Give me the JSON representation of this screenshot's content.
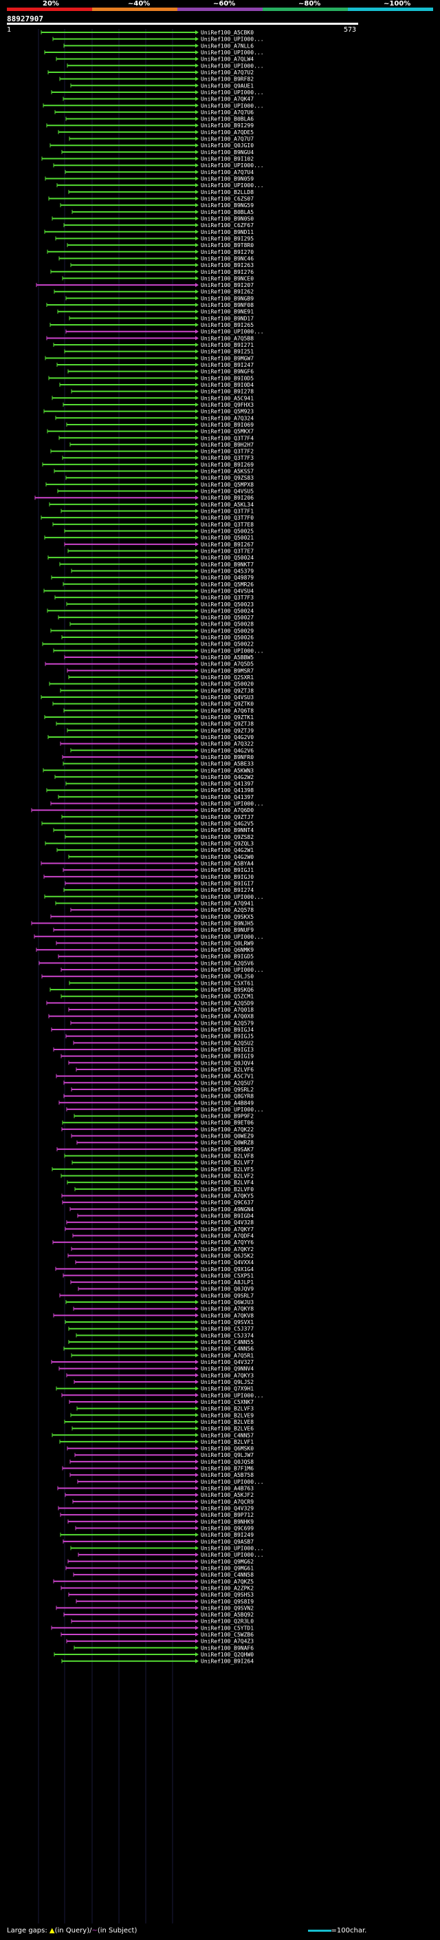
{
  "legend": {
    "labels": [
      "20%",
      "~40%",
      "~60%",
      "~80%",
      "~100%"
    ],
    "colors": [
      "#e31a1c",
      "#e67e22",
      "#8e44ad",
      "#27ae60",
      "#17becf"
    ]
  },
  "query_id": "88927907",
  "scale": {
    "start": "1",
    "end": "573"
  },
  "footer": {
    "large_gaps_label": "Large gaps:",
    "query_gap_text": "(in Query)/",
    "subject_gap_text": "(in Subject)",
    "scale_text": "=100char."
  },
  "hits": [
    {
      "label": "UniRef100_A5CBK0",
      "color": "#55dd33"
    },
    {
      "label": "UniRef100_UPI000...",
      "color": "#55dd33"
    },
    {
      "label": "UniRef100_A7NLL6",
      "color": "#55dd33"
    },
    {
      "label": "UniRef100_UPI000...",
      "color": "#55dd33"
    },
    {
      "label": "UniRef100_A7QLW4",
      "color": "#55dd33"
    },
    {
      "label": "UniRef100_UPI000...",
      "color": "#55dd33"
    },
    {
      "label": "UniRef100_A7Q7U2",
      "color": "#55dd33"
    },
    {
      "label": "UniRef100_B9RF82",
      "color": "#55dd33"
    },
    {
      "label": "UniRef100_Q9AUE1",
      "color": "#55dd33"
    },
    {
      "label": "UniRef100_UPI000...",
      "color": "#55dd33"
    },
    {
      "label": "UniRef100_A7QK47",
      "color": "#55dd33"
    },
    {
      "label": "UniRef100_UPI000...",
      "color": "#55dd33"
    },
    {
      "label": "UniRef100_A7Q7U6",
      "color": "#55dd33"
    },
    {
      "label": "UniRef100_B0BLA6",
      "color": "#55dd33"
    },
    {
      "label": "UniRef100_B9I299",
      "color": "#55dd33"
    },
    {
      "label": "UniRef100_A7QDE5",
      "color": "#55dd33"
    },
    {
      "label": "UniRef100_A7Q7U7",
      "color": "#55dd33"
    },
    {
      "label": "UniRef100_Q0JGI0",
      "color": "#55dd33"
    },
    {
      "label": "UniRef100_B9NGU4",
      "color": "#55dd33"
    },
    {
      "label": "UniRef100_B9I102",
      "color": "#55dd33"
    },
    {
      "label": "UniRef100_UPI000...",
      "color": "#55dd33"
    },
    {
      "label": "UniRef100_A7Q7U4",
      "color": "#55dd33"
    },
    {
      "label": "UniRef100_B9N059",
      "color": "#55dd33"
    },
    {
      "label": "UniRef100_UPI000...",
      "color": "#55dd33"
    },
    {
      "label": "UniRef100_B2LLD8",
      "color": "#55dd33"
    },
    {
      "label": "UniRef100_C6ZS07",
      "color": "#55dd33"
    },
    {
      "label": "UniRef100_B9NG59",
      "color": "#55dd33"
    },
    {
      "label": "UniRef100_B0BLA5",
      "color": "#55dd33"
    },
    {
      "label": "UniRef100_B9N0S0",
      "color": "#55dd33"
    },
    {
      "label": "UniRef100_C6ZF67",
      "color": "#55dd33"
    },
    {
      "label": "UniRef100_B9ND11",
      "color": "#55dd33"
    },
    {
      "label": "UniRef100_B9I295",
      "color": "#55dd33"
    },
    {
      "label": "UniRef100_B9T8R0",
      "color": "#55dd33"
    },
    {
      "label": "UniRef100_B9I270",
      "color": "#55dd33"
    },
    {
      "label": "UniRef100_B9NC46",
      "color": "#55dd33"
    },
    {
      "label": "UniRef100_B9I263",
      "color": "#55dd33"
    },
    {
      "label": "UniRef100_B9I276",
      "color": "#55dd33"
    },
    {
      "label": "UniRef100_B9NCE0",
      "color": "#55dd33"
    },
    {
      "label": "UniRef100_B9I207",
      "color": "#cc44cc"
    },
    {
      "label": "UniRef100_B9I262",
      "color": "#55dd33"
    },
    {
      "label": "UniRef100_B9NGB9",
      "color": "#55dd33"
    },
    {
      "label": "UniRef100_B9NF08",
      "color": "#55dd33"
    },
    {
      "label": "UniRef100_B9NE91",
      "color": "#55dd33"
    },
    {
      "label": "UniRef100_B9ND17",
      "color": "#55dd33"
    },
    {
      "label": "UniRef100_B9I265",
      "color": "#55dd33"
    },
    {
      "label": "UniRef100_UPI000...",
      "color": "#cc44cc"
    },
    {
      "label": "UniRef100_A7Q5B8",
      "color": "#cc44cc"
    },
    {
      "label": "UniRef100_B9I271",
      "color": "#55dd33"
    },
    {
      "label": "UniRef100_B9I251",
      "color": "#55dd33"
    },
    {
      "label": "UniRef100_B9MGW7",
      "color": "#55dd33"
    },
    {
      "label": "UniRef100_B9I247",
      "color": "#55dd33"
    },
    {
      "label": "UniRef100_B9NGF6",
      "color": "#55dd33"
    },
    {
      "label": "UniRef100_B9I0D5",
      "color": "#55dd33"
    },
    {
      "label": "UniRef100_B9I0D4",
      "color": "#55dd33"
    },
    {
      "label": "UniRef100_B9I278",
      "color": "#55dd33"
    },
    {
      "label": "UniRef100_A5C941",
      "color": "#55dd33"
    },
    {
      "label": "UniRef100_Q9FHX3",
      "color": "#55dd33"
    },
    {
      "label": "UniRef100_Q5M923",
      "color": "#55dd33"
    },
    {
      "label": "UniRef100_A7Q324",
      "color": "#55dd33"
    },
    {
      "label": "UniRef100_B9I069",
      "color": "#55dd33"
    },
    {
      "label": "UniRef100_Q5MKX7",
      "color": "#55dd33"
    },
    {
      "label": "UniRef100_Q3T7F4",
      "color": "#55dd33"
    },
    {
      "label": "UniRef100_B9H2H7",
      "color": "#55dd33"
    },
    {
      "label": "UniRef100_Q3T7F2",
      "color": "#55dd33"
    },
    {
      "label": "UniRef100_Q3T7F3",
      "color": "#55dd33"
    },
    {
      "label": "UniRef100_B9I269",
      "color": "#55dd33"
    },
    {
      "label": "UniRef100_A5KSS7",
      "color": "#55dd33"
    },
    {
      "label": "UniRef100_Q9ZS83",
      "color": "#55dd33"
    },
    {
      "label": "UniRef100_Q5MPX8",
      "color": "#55dd33"
    },
    {
      "label": "UniRef100_Q4VSU5",
      "color": "#55dd33"
    },
    {
      "label": "UniRef100_B9I206",
      "color": "#cc44cc"
    },
    {
      "label": "UniRef100_A5KL34",
      "color": "#55dd33"
    },
    {
      "label": "UniRef100_Q3T7F1",
      "color": "#55dd33"
    },
    {
      "label": "UniRef100_Q3T7F0",
      "color": "#55dd33"
    },
    {
      "label": "UniRef100_Q3T7E8",
      "color": "#55dd33"
    },
    {
      "label": "UniRef100_Q50025",
      "color": "#55dd33"
    },
    {
      "label": "UniRef100_Q50021",
      "color": "#55dd33"
    },
    {
      "label": "UniRef100_B9I267",
      "color": "#cc44cc"
    },
    {
      "label": "UniRef100_Q3T7E7",
      "color": "#55dd33"
    },
    {
      "label": "UniRef100_Q50024",
      "color": "#55dd33"
    },
    {
      "label": "UniRef100_B9NKT7",
      "color": "#55dd33"
    },
    {
      "label": "UniRef100_Q45379",
      "color": "#55dd33"
    },
    {
      "label": "UniRef100_Q49879",
      "color": "#55dd33"
    },
    {
      "label": "UniRef100_Q5MR26",
      "color": "#55dd33"
    },
    {
      "label": "UniRef100_Q4VSU4",
      "color": "#55dd33"
    },
    {
      "label": "UniRef100_Q3T7F3",
      "color": "#55dd33"
    },
    {
      "label": "UniRef100_Q50023",
      "color": "#55dd33"
    },
    {
      "label": "UniRef100_Q50024",
      "color": "#55dd33"
    },
    {
      "label": "UniRef100_Q50027",
      "color": "#55dd33"
    },
    {
      "label": "UniRef100_Q50028",
      "color": "#55dd33"
    },
    {
      "label": "UniRef100_Q50029",
      "color": "#55dd33"
    },
    {
      "label": "UniRef100_Q50026",
      "color": "#55dd33"
    },
    {
      "label": "UniRef100_Q50022",
      "color": "#55dd33"
    },
    {
      "label": "UniRef100_UPI000...",
      "color": "#55dd33"
    },
    {
      "label": "UniRef100_A5BBW5",
      "color": "#cc44cc"
    },
    {
      "label": "UniRef100_A7Q5D5",
      "color": "#cc44cc"
    },
    {
      "label": "UniRef100_B9MSR7",
      "color": "#cc44cc"
    },
    {
      "label": "UniRef100_Q2SXR1",
      "color": "#55dd33"
    },
    {
      "label": "UniRef100_Q50020",
      "color": "#55dd33"
    },
    {
      "label": "UniRef100_Q9ZTJ8",
      "color": "#55dd33"
    },
    {
      "label": "UniRef100_Q4VSU3",
      "color": "#55dd33"
    },
    {
      "label": "UniRef100_Q9ZTK0",
      "color": "#55dd33"
    },
    {
      "label": "UniRef100_A7Q6T8",
      "color": "#55dd33"
    },
    {
      "label": "UniRef100_Q9ZTK1",
      "color": "#55dd33"
    },
    {
      "label": "UniRef100_Q9ZTJ8",
      "color": "#55dd33"
    },
    {
      "label": "UniRef100_Q9ZTJ9",
      "color": "#55dd33"
    },
    {
      "label": "UniRef100_Q4G2V0",
      "color": "#55dd33"
    },
    {
      "label": "UniRef100_A7Q322",
      "color": "#cc44cc"
    },
    {
      "label": "UniRef100_Q4G2V6",
      "color": "#55dd33"
    },
    {
      "label": "UniRef100_B9NFR0",
      "color": "#cc44cc"
    },
    {
      "label": "UniRef100_A5BE33",
      "color": "#55dd33"
    },
    {
      "label": "UniRef100_A5KWN3",
      "color": "#55dd33"
    },
    {
      "label": "UniRef100_Q4G2W2",
      "color": "#55dd33"
    },
    {
      "label": "UniRef100_Q41397",
      "color": "#55dd33"
    },
    {
      "label": "UniRef100_Q41398",
      "color": "#55dd33"
    },
    {
      "label": "UniRef100_Q41397",
      "color": "#55dd33"
    },
    {
      "label": "UniRef100_UPI000...",
      "color": "#cc44cc"
    },
    {
      "label": "UniRef100_A7Q6D0",
      "color": "#cc44cc"
    },
    {
      "label": "UniRef100_Q9ZTJ7",
      "color": "#55dd33"
    },
    {
      "label": "UniRef100_Q4G2V5",
      "color": "#55dd33"
    },
    {
      "label": "UniRef100_B9NNT4",
      "color": "#55dd33"
    },
    {
      "label": "UniRef100_Q9ZS82",
      "color": "#55dd33"
    },
    {
      "label": "UniRef100_Q9ZQL3",
      "color": "#55dd33"
    },
    {
      "label": "UniRef100_Q4G2W1",
      "color": "#55dd33"
    },
    {
      "label": "UniRef100_Q4G2W0",
      "color": "#55dd33"
    },
    {
      "label": "UniRef100_A5BYA4",
      "color": "#cc44cc"
    },
    {
      "label": "UniRef100_B9IGJ1",
      "color": "#cc44cc"
    },
    {
      "label": "UniRef100_B9IGJ0",
      "color": "#cc44cc"
    },
    {
      "label": "UniRef100_B9IGI7",
      "color": "#cc44cc"
    },
    {
      "label": "UniRef100_B9I274",
      "color": "#55dd33"
    },
    {
      "label": "UniRef100_UPI000...",
      "color": "#55dd33"
    },
    {
      "label": "UniRef100_A7Q941",
      "color": "#55dd33"
    },
    {
      "label": "UniRef100_A2Q578",
      "color": "#cc44cc"
    },
    {
      "label": "UniRef100_Q9SKX5",
      "color": "#cc44cc"
    },
    {
      "label": "UniRef100_B9NJH5",
      "color": "#cc44cc"
    },
    {
      "label": "UniRef100_B9NUF9",
      "color": "#cc44cc"
    },
    {
      "label": "UniRef100_UPI000...",
      "color": "#cc44cc"
    },
    {
      "label": "UniRef100_Q0LRW9",
      "color": "#cc44cc"
    },
    {
      "label": "UniRef100_Q6NMK9",
      "color": "#cc44cc"
    },
    {
      "label": "UniRef100_B9IGD5",
      "color": "#cc44cc"
    },
    {
      "label": "UniRef100_A2Q5V6",
      "color": "#cc44cc"
    },
    {
      "label": "UniRef100_UPI000...",
      "color": "#cc44cc"
    },
    {
      "label": "UniRef100_Q9LJS0",
      "color": "#cc44cc"
    },
    {
      "label": "UniRef100_C5XT61",
      "color": "#55dd33"
    },
    {
      "label": "UniRef100_B9SKQ6",
      "color": "#55dd33"
    },
    {
      "label": "UniRef100_Q5ZCM1",
      "color": "#55dd33"
    },
    {
      "label": "UniRef100_A2Q5D9",
      "color": "#cc44cc"
    },
    {
      "label": "UniRef100_A7Q018",
      "color": "#cc44cc"
    },
    {
      "label": "UniRef100_A7Q0X8",
      "color": "#cc44cc"
    },
    {
      "label": "UniRef100_A2Q579",
      "color": "#cc44cc"
    },
    {
      "label": "UniRef100_B9IGJ4",
      "color": "#cc44cc"
    },
    {
      "label": "UniRef100_B9IGJ5",
      "color": "#cc44cc"
    },
    {
      "label": "UniRef100_A2Q5U2",
      "color": "#cc44cc"
    },
    {
      "label": "UniRef100_B9IGI3",
      "color": "#cc44cc"
    },
    {
      "label": "UniRef100_B9IGI9",
      "color": "#cc44cc"
    },
    {
      "label": "UniRef100_Q0JQV4",
      "color": "#cc44cc"
    },
    {
      "label": "UniRef100_B2LVF6",
      "color": "#cc44cc"
    },
    {
      "label": "UniRef100_A5C7V1",
      "color": "#cc44cc"
    },
    {
      "label": "UniRef100_A2Q5U7",
      "color": "#cc44cc"
    },
    {
      "label": "UniRef100_Q9SRL2",
      "color": "#cc44cc"
    },
    {
      "label": "UniRef100_Q8GYR8",
      "color": "#cc44cc"
    },
    {
      "label": "UniRef100_A4B849",
      "color": "#cc44cc"
    },
    {
      "label": "UniRef100_UPI000...",
      "color": "#cc44cc"
    },
    {
      "label": "UniRef100_B9P9F2",
      "color": "#55dd33"
    },
    {
      "label": "UniRef100_B9ET06",
      "color": "#55dd33"
    },
    {
      "label": "UniRef100_A7QK22",
      "color": "#cc44cc"
    },
    {
      "label": "UniRef100_Q0WEZ9",
      "color": "#cc44cc"
    },
    {
      "label": "UniRef100_Q0WRZ8",
      "color": "#cc44cc"
    },
    {
      "label": "UniRef100_B9SAK7",
      "color": "#cc44cc"
    },
    {
      "label": "UniRef100_B2LVF8",
      "color": "#55dd33"
    },
    {
      "label": "UniRef100_B2LVF7",
      "color": "#55dd33"
    },
    {
      "label": "UniRef100_B2LVF5",
      "color": "#55dd33"
    },
    {
      "label": "UniRef100_B2LVF2",
      "color": "#55dd33"
    },
    {
      "label": "UniRef100_B2LVF4",
      "color": "#55dd33"
    },
    {
      "label": "UniRef100_B2LVF0",
      "color": "#55dd33"
    },
    {
      "label": "UniRef100_A7QKY5",
      "color": "#cc44cc"
    },
    {
      "label": "UniRef100_Q9C637",
      "color": "#cc44cc"
    },
    {
      "label": "UniRef100_A9NGN4",
      "color": "#cc44cc"
    },
    {
      "label": "UniRef100_B9IGD4",
      "color": "#cc44cc"
    },
    {
      "label": "UniRef100_Q4V328",
      "color": "#cc44cc"
    },
    {
      "label": "UniRef100_A7QKY7",
      "color": "#cc44cc"
    },
    {
      "label": "UniRef100_A7QDF4",
      "color": "#cc44cc"
    },
    {
      "label": "UniRef100_A7QYY6",
      "color": "#cc44cc"
    },
    {
      "label": "UniRef100_A7QKY2",
      "color": "#cc44cc"
    },
    {
      "label": "UniRef100_Q6J5K2",
      "color": "#cc44cc"
    },
    {
      "label": "UniRef100_Q4VXX4",
      "color": "#cc44cc"
    },
    {
      "label": "UniRef100_Q9X1G4",
      "color": "#cc44cc"
    },
    {
      "label": "UniRef100_C5XP51",
      "color": "#cc44cc"
    },
    {
      "label": "UniRef100_A8JLP1",
      "color": "#cc44cc"
    },
    {
      "label": "UniRef100_Q0JQV9",
      "color": "#cc44cc"
    },
    {
      "label": "UniRef100_Q9SRL7",
      "color": "#cc44cc"
    },
    {
      "label": "UniRef100_Q6WJU3",
      "color": "#55dd33"
    },
    {
      "label": "UniRef100_A7QKY8",
      "color": "#cc44cc"
    },
    {
      "label": "UniRef100_A7QKV8",
      "color": "#cc44cc"
    },
    {
      "label": "UniRef100_Q9SVX1",
      "color": "#55dd33"
    },
    {
      "label": "UniRef100_C5J377",
      "color": "#55dd33"
    },
    {
      "label": "UniRef100_C5J374",
      "color": "#55dd33"
    },
    {
      "label": "UniRef100_C4NN55",
      "color": "#55dd33"
    },
    {
      "label": "UniRef100_C4NN56",
      "color": "#55dd33"
    },
    {
      "label": "UniRef100_A7Q5R1",
      "color": "#55dd33"
    },
    {
      "label": "UniRef100_Q4V327",
      "color": "#cc44cc"
    },
    {
      "label": "UniRef100_Q9NNV4",
      "color": "#cc44cc"
    },
    {
      "label": "UniRef100_A7QKY3",
      "color": "#cc44cc"
    },
    {
      "label": "UniRef100_Q9LJS2",
      "color": "#cc44cc"
    },
    {
      "label": "UniRef100_Q7X9H1",
      "color": "#55dd33"
    },
    {
      "label": "UniRef100_UPI000...",
      "color": "#cc44cc"
    },
    {
      "label": "UniRef100_C5XNK7",
      "color": "#cc44cc"
    },
    {
      "label": "UniRef100_B2LVF3",
      "color": "#55dd33"
    },
    {
      "label": "UniRef100_B2LVE9",
      "color": "#55dd33"
    },
    {
      "label": "UniRef100_B2LVE8",
      "color": "#55dd33"
    },
    {
      "label": "UniRef100_B2LVE6",
      "color": "#55dd33"
    },
    {
      "label": "UniRef100_C4NN57",
      "color": "#55dd33"
    },
    {
      "label": "UniRef100_B2LVF1",
      "color": "#55dd33"
    },
    {
      "label": "UniRef100_Q6MSK0",
      "color": "#cc44cc"
    },
    {
      "label": "UniRef100_Q9LJW7",
      "color": "#cc44cc"
    },
    {
      "label": "UniRef100_Q0JQS8",
      "color": "#cc44cc"
    },
    {
      "label": "UniRef100_B7F1M6",
      "color": "#cc44cc"
    },
    {
      "label": "UniRef100_A5B758",
      "color": "#cc44cc"
    },
    {
      "label": "UniRef100_UPI000...",
      "color": "#cc44cc"
    },
    {
      "label": "UniRef100_A4B763",
      "color": "#cc44cc"
    },
    {
      "label": "UniRef100_A5KJF2",
      "color": "#cc44cc"
    },
    {
      "label": "UniRef100_A7QCR9",
      "color": "#cc44cc"
    },
    {
      "label": "UniRef100_Q4V329",
      "color": "#cc44cc"
    },
    {
      "label": "UniRef100_B9P712",
      "color": "#cc44cc"
    },
    {
      "label": "UniRef100_B9NHK9",
      "color": "#cc44cc"
    },
    {
      "label": "UniRef100_Q9C699",
      "color": "#cc44cc"
    },
    {
      "label": "UniRef100_B9I249",
      "color": "#55dd33"
    },
    {
      "label": "UniRef100_Q9ASB7",
      "color": "#cc44cc"
    },
    {
      "label": "UniRef100_UPI000...",
      "color": "#55dd33"
    },
    {
      "label": "UniRef100_UPI000...",
      "color": "#cc44cc"
    },
    {
      "label": "UniRef100_Q9MG62",
      "color": "#cc44cc"
    },
    {
      "label": "UniRef100_Q9MG61",
      "color": "#cc44cc"
    },
    {
      "label": "UniRef100_C4NN58",
      "color": "#cc44cc"
    },
    {
      "label": "UniRef100_A7QKZ5",
      "color": "#cc44cc"
    },
    {
      "label": "UniRef100_A2ZPK2",
      "color": "#cc44cc"
    },
    {
      "label": "UniRef100_Q9SHS3",
      "color": "#cc44cc"
    },
    {
      "label": "UniRef100_Q9S8I9",
      "color": "#cc44cc"
    },
    {
      "label": "UniRef100_Q9SVN2",
      "color": "#cc44cc"
    },
    {
      "label": "UniRef100_A5BQ92",
      "color": "#cc44cc"
    },
    {
      "label": "UniRef100_Q2R3L0",
      "color": "#cc44cc"
    },
    {
      "label": "UniRef100_C5YTD1",
      "color": "#cc44cc"
    },
    {
      "label": "UniRef100_C5WZB6",
      "color": "#cc44cc"
    },
    {
      "label": "UniRef100_A7Q4Z3",
      "color": "#cc44cc"
    },
    {
      "label": "UniRef100_B9NAF6",
      "color": "#55dd33"
    },
    {
      "label": "UniRef100_Q2QHW0",
      "color": "#55dd33"
    },
    {
      "label": "UniRef100_B9I264",
      "color": "#55dd33"
    }
  ]
}
